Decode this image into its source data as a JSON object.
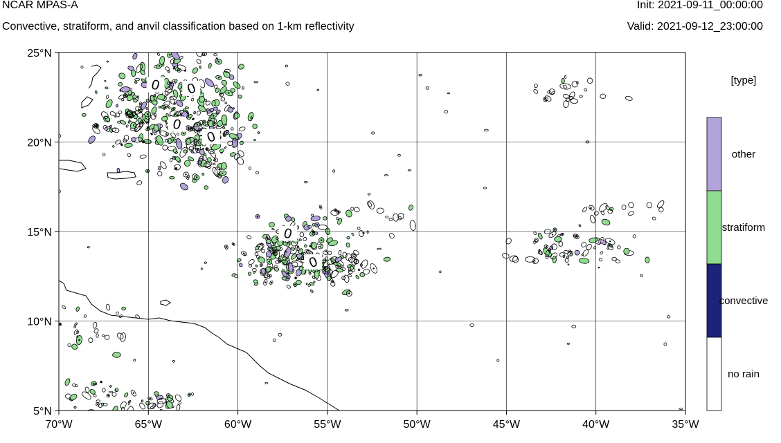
{
  "header": {
    "model": "NCAR MPAS-A",
    "subtitle": "Convective, stratiform, and anvil classification based on 1-km reflectivity",
    "init": "Init: 2021-09-11_00:00:00",
    "valid": "Valid: 2021-09-12_23:00:00"
  },
  "map": {
    "lon_range": [
      -70,
      -35
    ],
    "lat_range": [
      5,
      25
    ],
    "gridlines": true,
    "lon_ticks": [
      {
        "value": -70,
        "label": "70°W"
      },
      {
        "value": -65,
        "label": "65°W"
      },
      {
        "value": -60,
        "label": "60°W"
      },
      {
        "value": -55,
        "label": "55°W"
      },
      {
        "value": -50,
        "label": "50°W"
      },
      {
        "value": -45,
        "label": "45°W"
      },
      {
        "value": -40,
        "label": "40°W"
      },
      {
        "value": -35,
        "label": "35°W"
      }
    ],
    "lat_ticks": [
      {
        "value": 25,
        "label": "25°N"
      },
      {
        "value": 20,
        "label": "20°N"
      },
      {
        "value": 15,
        "label": "15°N"
      },
      {
        "value": 10,
        "label": "10°N"
      },
      {
        "value": 5,
        "label": "5°N"
      }
    ],
    "contour_labels": [
      {
        "lon": -64.6,
        "lat": 23.2,
        "text": "0"
      },
      {
        "lon": -62.6,
        "lat": 23.0,
        "text": "0"
      },
      {
        "lon": -63.4,
        "lat": 21.0,
        "text": "0"
      },
      {
        "lon": -61.5,
        "lat": 20.3,
        "text": "0"
      },
      {
        "lon": -57.2,
        "lat": 14.9,
        "text": "0"
      },
      {
        "lon": -55.8,
        "lat": 13.3,
        "text": "0"
      }
    ],
    "precip_clusters": [
      {
        "lon": -63.5,
        "lat": 22.0,
        "slon": 1.8,
        "slat": 1.6,
        "n": 260,
        "green": 0.45,
        "purple": 0.12
      },
      {
        "lon": -61.5,
        "lat": 19.7,
        "slon": 1.2,
        "slat": 1.2,
        "n": 120,
        "green": 0.45,
        "purple": 0.08
      },
      {
        "lon": -66.5,
        "lat": 21.3,
        "slon": 1.2,
        "slat": 1.0,
        "n": 60,
        "green": 0.2,
        "purple": 0.05
      },
      {
        "lon": -56.8,
        "lat": 13.7,
        "slon": 1.6,
        "slat": 0.9,
        "n": 200,
        "green": 0.5,
        "purple": 0.12
      },
      {
        "lon": -54.5,
        "lat": 13.0,
        "slon": 1.0,
        "slat": 0.6,
        "n": 60,
        "green": 0.3,
        "purple": 0.05
      },
      {
        "lon": -41.5,
        "lat": 14.1,
        "slon": 1.6,
        "slat": 0.5,
        "n": 70,
        "green": 0.25,
        "purple": 0.05
      },
      {
        "lon": -38.5,
        "lat": 16.2,
        "slon": 1.0,
        "slat": 0.3,
        "n": 18,
        "green": 0.1,
        "purple": 0.0
      },
      {
        "lon": -41.5,
        "lat": 22.8,
        "slon": 1.4,
        "slat": 0.4,
        "n": 22,
        "green": 0.05,
        "purple": 0.0
      },
      {
        "lon": -68.0,
        "lat": 5.8,
        "slon": 1.0,
        "slat": 0.6,
        "n": 30,
        "green": 0.4,
        "purple": 0.0
      },
      {
        "lon": -64.5,
        "lat": 5.4,
        "slon": 1.0,
        "slat": 0.3,
        "n": 30,
        "green": 0.3,
        "purple": 0.1
      },
      {
        "lon": -68.0,
        "lat": 9.5,
        "slon": 1.2,
        "slat": 0.8,
        "n": 25,
        "green": 0.3,
        "purple": 0.0
      },
      {
        "lon": -52.5,
        "lat": 16.0,
        "slon": 1.5,
        "slat": 0.7,
        "n": 25,
        "green": 0.05,
        "purple": 0.0
      }
    ]
  },
  "legend": {
    "title": "[type]",
    "entries": [
      {
        "label": "other",
        "color": "#b3a3dc"
      },
      {
        "label": "stratiform",
        "color": "#90dc90"
      },
      {
        "label": "convective",
        "color": "#1b237a"
      },
      {
        "label": "no rain",
        "color": "#ffffff"
      }
    ]
  }
}
